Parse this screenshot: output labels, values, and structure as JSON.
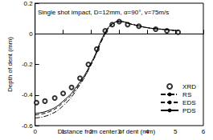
{
  "chart_data": {
    "type": "line",
    "annotation": "Single shot impact, D=12mm, α=90°, v=75m/s",
    "xlabel": "Distance from center of dent (mm)",
    "ylabel": "Depth of dent (mm)",
    "xlim": [
      0,
      6
    ],
    "xticks": [
      0,
      1,
      2,
      3,
      4,
      5,
      6
    ],
    "ylim": [
      -0.6,
      0.2
    ],
    "yticks": [
      -0.6,
      -0.4,
      -0.2,
      0,
      0.2
    ],
    "legend": "lower right",
    "series": [
      {
        "name": "XRD",
        "type": "scatter",
        "marker": "circle",
        "color": "#000000",
        "x": [
          0.05,
          0.35,
          0.7,
          1.0,
          1.3,
          1.6,
          1.9,
          2.2,
          2.5,
          2.75,
          3.0,
          3.3,
          3.7,
          4.3,
          4.7,
          5.1
        ],
        "values": [
          -0.45,
          -0.44,
          -0.42,
          -0.39,
          -0.35,
          -0.29,
          -0.2,
          -0.1,
          0.02,
          0.06,
          0.08,
          0.06,
          0.05,
          0.03,
          0.02,
          0.01
        ]
      },
      {
        "name": "RS",
        "type": "line",
        "line_style": "dashdot",
        "color": "#000000",
        "x": [
          0,
          0.5,
          1.0,
          1.5,
          2.0,
          2.5,
          2.8,
          3.0,
          3.5,
          4.0,
          4.5,
          5.1
        ],
        "values": [
          -0.55,
          -0.53,
          -0.47,
          -0.36,
          -0.2,
          0.0,
          0.07,
          0.08,
          0.06,
          0.04,
          0.03,
          0.02
        ]
      },
      {
        "name": "EDS",
        "type": "line",
        "line_style": "dashed",
        "color": "#000000",
        "x": [
          0,
          0.5,
          1.0,
          1.5,
          2.0,
          2.5,
          2.8,
          3.0,
          3.5,
          4.0,
          4.5,
          5.1
        ],
        "values": [
          -0.53,
          -0.51,
          -0.45,
          -0.35,
          -0.2,
          0.0,
          0.07,
          0.08,
          0.06,
          0.04,
          0.03,
          0.02
        ]
      },
      {
        "name": "PDS",
        "type": "line",
        "line_style": "solid",
        "color": "#000000",
        "x": [
          0,
          0.5,
          1.0,
          1.5,
          2.0,
          2.5,
          2.8,
          3.0,
          3.5,
          4.0,
          4.5,
          5.1
        ],
        "values": [
          -0.52,
          -0.5,
          -0.44,
          -0.34,
          -0.19,
          0.01,
          0.07,
          0.08,
          0.06,
          0.04,
          0.03,
          0.02
        ]
      }
    ]
  }
}
